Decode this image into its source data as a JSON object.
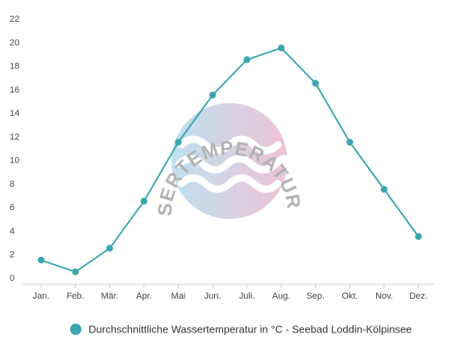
{
  "chart_data": {
    "type": "line",
    "categories": [
      "Jan.",
      "Feb.",
      "Mär.",
      "Apr.",
      "Mai",
      "Jun.",
      "Juli.",
      "Aug.",
      "Sep.",
      "Okt.",
      "Nov.",
      "Dez."
    ],
    "series": [
      {
        "name": "Durchschnittliche Wassertemperatur in °C - Seebad Loddin-Kölpinsee",
        "values": [
          1.5,
          0.5,
          2.5,
          6.5,
          11.5,
          15.5,
          18.5,
          19.5,
          16.5,
          11.5,
          7.5,
          3.5
        ]
      }
    ],
    "ylim": [
      0,
      22
    ],
    "yticks": [
      "0",
      "2",
      "4",
      "6",
      "8",
      "10",
      "12",
      "14",
      "16",
      "18",
      "20",
      "22"
    ],
    "grid": false,
    "legend_position": "bottom",
    "series_color": "#3aa6b0",
    "title": "",
    "xlabel": "",
    "ylabel": ""
  },
  "watermark": {
    "text": "WASSERTEMPERATUR.ORG",
    "colors": {
      "left": "#a9d6ea",
      "right": "#e9b0c8"
    }
  }
}
